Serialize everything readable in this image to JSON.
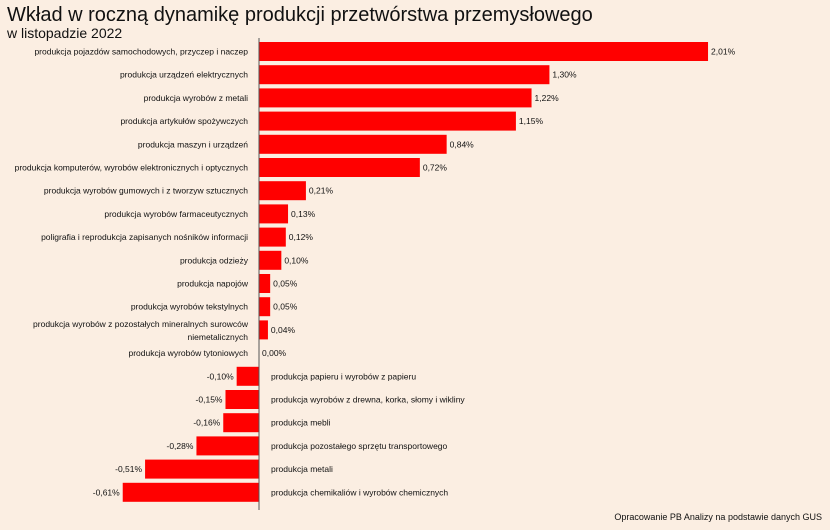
{
  "header": {
    "title": "Wkład w roczną dynamikę produkcji przetwórstwa przemysłowego",
    "subtitle": "w listopadzie 2022"
  },
  "footer": {
    "source": "Opracowanie PB Analizy na podstawie danych GUS"
  },
  "colors": {
    "bar": "#ff0000",
    "background": "#fbeee2",
    "axis": "#555555"
  },
  "chart_data": {
    "type": "bar",
    "orientation": "horizontal",
    "title": "Wkład w roczną dynamikę produkcji przetwórstwa przemysłowego",
    "subtitle": "w listopadzie 2022",
    "xlim": [
      -0.61,
      2.01
    ],
    "grid": false,
    "legend": "none",
    "categories": [
      "produkcja pojazdów samochodowych, przyczep i naczep",
      "produkcja urządzeń elektrycznych",
      "produkcja wyrobów z metali",
      "produkcja artykułów spożywczych",
      "produkcja maszyn i urządzeń",
      "produkcja komputerów, wyrobów elektronicznych i optycznych",
      "produkcja wyrobów gumowych i z tworzyw sztucznych",
      "produkcja wyrobów farmaceutycznych",
      "poligrafia i reprodukcja zapisanych nośników informacji",
      "produkcja odzieży",
      "produkcja napojów",
      "produkcja wyrobów tekstylnych",
      "produkcja wyrobów z pozostałych mineralnych surowców niemetalicznych",
      "produkcja wyrobów tytoniowych",
      "produkcja papieru i wyrobów z papieru",
      "produkcja wyrobów z drewna, korka, słomy i wikliny",
      "produkcja mebli",
      "produkcja pozostałego sprzętu transportowego",
      "produkcja metali",
      "produkcja chemikaliów i wyrobów chemicznych"
    ],
    "values": [
      2.01,
      1.3,
      1.22,
      1.15,
      0.84,
      0.72,
      0.21,
      0.13,
      0.12,
      0.1,
      0.05,
      0.05,
      0.04,
      0.0,
      -0.1,
      -0.15,
      -0.16,
      -0.28,
      -0.51,
      -0.61
    ],
    "value_labels": [
      "2,01%",
      "1,30%",
      "1,22%",
      "1,15%",
      "0,84%",
      "0,72%",
      "0,21%",
      "0,13%",
      "0,12%",
      "0,10%",
      "0,05%",
      "0,05%",
      "0,04%",
      "0,00%",
      "-0,10%",
      "-0,15%",
      "-0,16%",
      "-0,28%",
      "-0,51%",
      "-0,61%"
    ]
  }
}
